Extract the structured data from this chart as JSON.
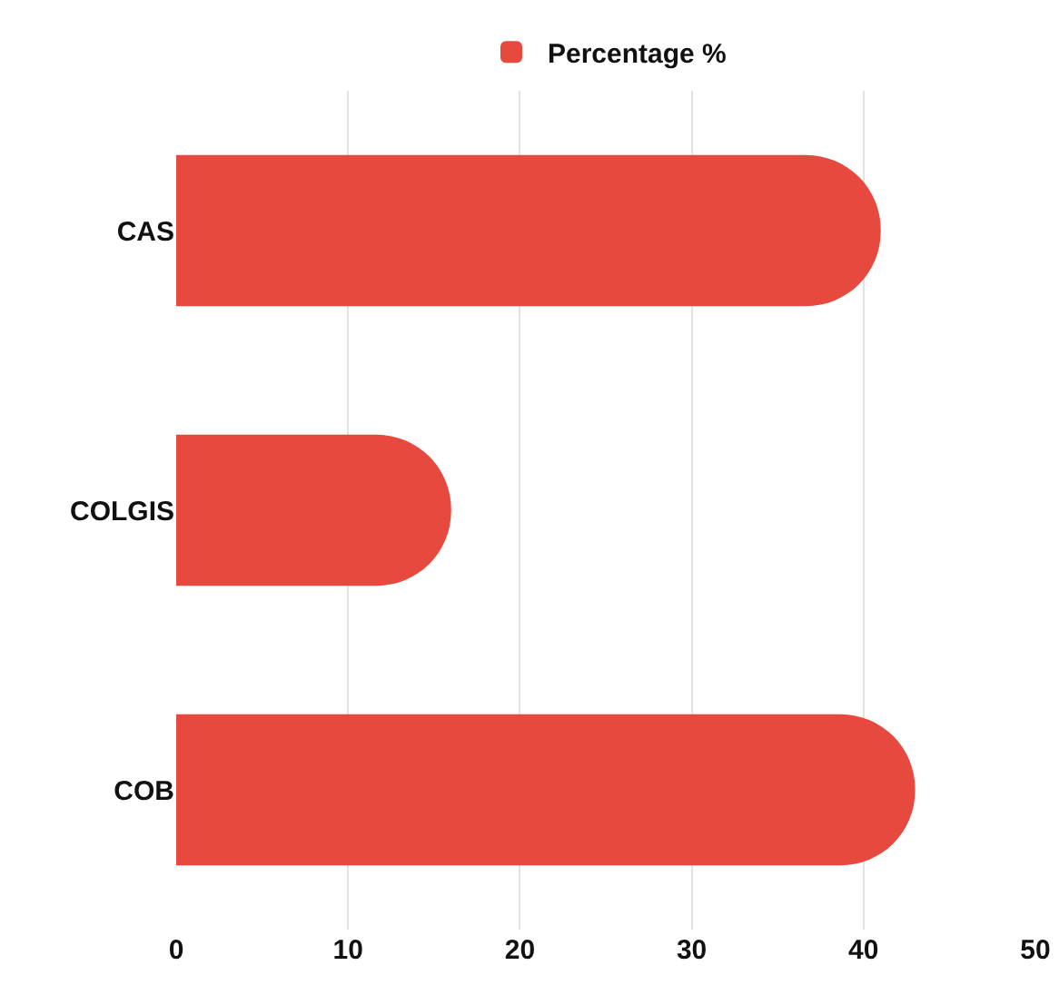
{
  "chart_data": {
    "type": "bar",
    "orientation": "horizontal",
    "categories": [
      "CAS",
      "COLGIS",
      "COB"
    ],
    "series": [
      {
        "name": "Percentage %",
        "color": "#e8493f",
        "values": [
          41,
          16,
          43
        ]
      }
    ],
    "xlim": [
      0,
      50
    ],
    "xticks": [
      0,
      10,
      20,
      30,
      40,
      50
    ],
    "grid": "x",
    "legend": "top"
  }
}
